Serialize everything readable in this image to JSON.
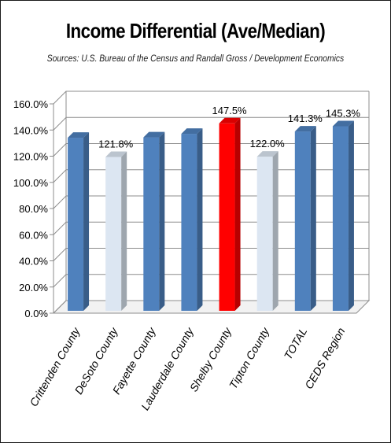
{
  "chart_data": {
    "type": "bar",
    "title": "Income Differential (Ave/Median)",
    "subtitle": "Sources: U.S. Bureau of the Census and Randall Gross / Development Economics",
    "xlabel": "",
    "ylabel": "",
    "ylim": [
      0,
      160
    ],
    "yticks": [
      "0.0%",
      "20.0%",
      "40.0%",
      "60.0%",
      "80.0%",
      "100.0%",
      "120.0%",
      "140.0%",
      "160.0%"
    ],
    "categories": [
      "Crittenden County",
      "DeSoto County",
      "Fayette County",
      "Lauderdale County",
      "Shelby County",
      "Tipton County",
      "TOTAL",
      "CEDS Region"
    ],
    "values": [
      136.5,
      121.8,
      136.8,
      139.5,
      147.5,
      122.0,
      141.3,
      145.3
    ],
    "data_labels": [
      "",
      "121.8%",
      "",
      "",
      "147.5%",
      "122.0%",
      "141.3%",
      "145.3%"
    ],
    "bar_colors": [
      "#4f81bd",
      "#dce6f2",
      "#4f81bd",
      "#4f81bd",
      "#ff0000",
      "#dce6f2",
      "#4f81bd",
      "#4f81bd"
    ],
    "grid": true,
    "legend": "none"
  }
}
